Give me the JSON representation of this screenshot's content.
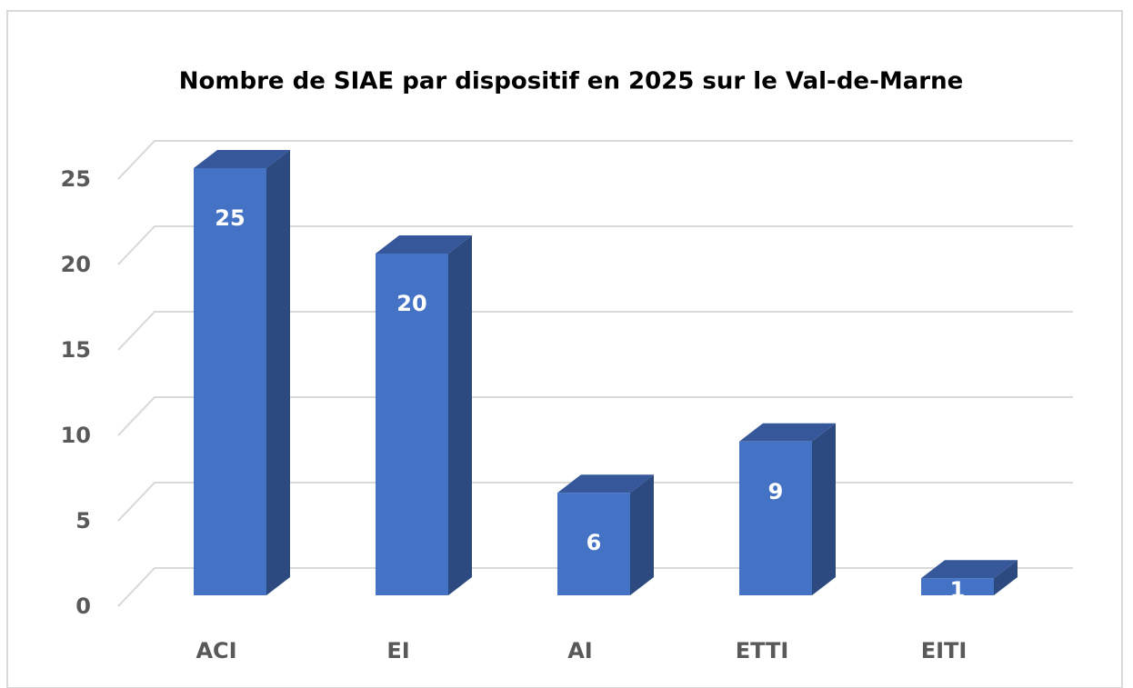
{
  "chart_data": {
    "type": "bar3d",
    "title": "Nombre de SIAE par dispositif en 2025 sur le Val-de-Marne",
    "categories": [
      "ACI",
      "EI",
      "AI",
      "ETTI",
      "EITI"
    ],
    "values": [
      25,
      20,
      6,
      9,
      1
    ],
    "color": "#4472c4",
    "ylim": [
      0,
      25
    ],
    "yticks": [
      0,
      5,
      10,
      15,
      20,
      25
    ],
    "grid": true
  }
}
